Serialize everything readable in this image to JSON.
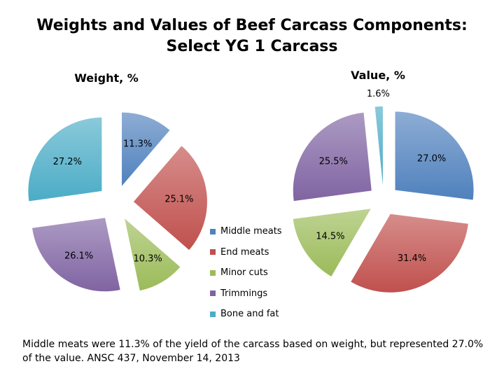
{
  "title_line1": "Weights and Values of Beef Carcass Components:",
  "title_line2": "Select YG 1 Carcass",
  "caption": "Middle meats were 11.3% of the yield of the carcass based on weight, but represented 27.0% of the value. ANSC 437, November 14, 2013",
  "legend": [
    {
      "label": "Middle meats",
      "color": "#4f81bd"
    },
    {
      "label": "End meats",
      "color": "#c0504d"
    },
    {
      "label": "Minor cuts",
      "color": "#9bbb59"
    },
    {
      "label": "Trimmings",
      "color": "#8064a2"
    },
    {
      "label": "Bone and fat",
      "color": "#4bacc6"
    }
  ],
  "chart_data": [
    {
      "type": "pie",
      "title": "Weight, %",
      "categories": [
        "Middle meats",
        "End meats",
        "Minor cuts",
        "Trimmings",
        "Bone and fat"
      ],
      "values": [
        11.3,
        25.1,
        10.3,
        26.1,
        27.2
      ],
      "labels": [
        "11.3%",
        "25.1%",
        "10.3%",
        "26.1%",
        "27.2%"
      ],
      "colors": [
        "#4f81bd",
        "#c0504d",
        "#9bbb59",
        "#8064a2",
        "#4bacc6"
      ],
      "exploded": true
    },
    {
      "type": "pie",
      "title": "Value, %",
      "categories": [
        "Middle meats",
        "End meats",
        "Minor cuts",
        "Trimmings",
        "Bone and fat"
      ],
      "values": [
        27.0,
        31.4,
        14.5,
        25.5,
        1.6
      ],
      "labels": [
        "27.0%",
        "31.4%",
        "14.5%",
        "25.5%",
        "1.6%"
      ],
      "colors": [
        "#4f81bd",
        "#c0504d",
        "#9bbb59",
        "#8064a2",
        "#4bacc6"
      ],
      "exploded": true
    }
  ]
}
